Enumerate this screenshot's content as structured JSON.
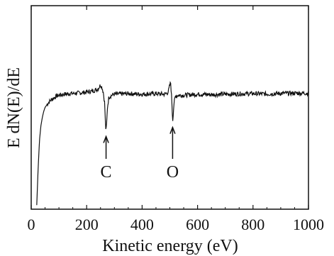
{
  "chart_data": {
    "type": "line",
    "title": "",
    "xlabel": "Kinetic energy (eV)",
    "ylabel": "E dN(E)/dE",
    "xlim": [
      0,
      1000
    ],
    "ylim": [
      0,
      100
    ],
    "y_tick_labels_shown": false,
    "grid": false,
    "legend": "none",
    "line_color": "#111111",
    "x_ticks": [
      0,
      200,
      400,
      600,
      800,
      1000
    ],
    "x_tick_labels": [
      "0",
      "200",
      "400",
      "600",
      "800",
      "1000"
    ],
    "series": [
      {
        "x": [
          20,
          25,
          30,
          35,
          40,
          45,
          50,
          55,
          60,
          70,
          80,
          90,
          100,
          120,
          140,
          160,
          180,
          200,
          220,
          240,
          245,
          250,
          255,
          260,
          265,
          268,
          270,
          272,
          275,
          280,
          290,
          300,
          350,
          400,
          450,
          480,
          490,
          495,
          500,
          503,
          505,
          508,
          510,
          515,
          520,
          530,
          550,
          600,
          650,
          700,
          750,
          800,
          850,
          900,
          950,
          1000
        ],
        "y": [
          2,
          20,
          34,
          41,
          45,
          48,
          50,
          51,
          52,
          53.5,
          54.5,
          55.5,
          56,
          56.5,
          56.8,
          57,
          57.2,
          57.5,
          58,
          59,
          60,
          61,
          60,
          57.5,
          52,
          41,
          38.5,
          42,
          50,
          55,
          56,
          56.5,
          56.8,
          56.5,
          56.8,
          56.5,
          57,
          58,
          61,
          62,
          58,
          51,
          43,
          52,
          55.5,
          56,
          56,
          56.5,
          56.3,
          56.5,
          56.7,
          56.8,
          56.6,
          56.9,
          57,
          57
        ]
      }
    ],
    "annotations": [
      {
        "label": "C",
        "x": 270
      },
      {
        "label": "O",
        "x": 510
      }
    ]
  }
}
